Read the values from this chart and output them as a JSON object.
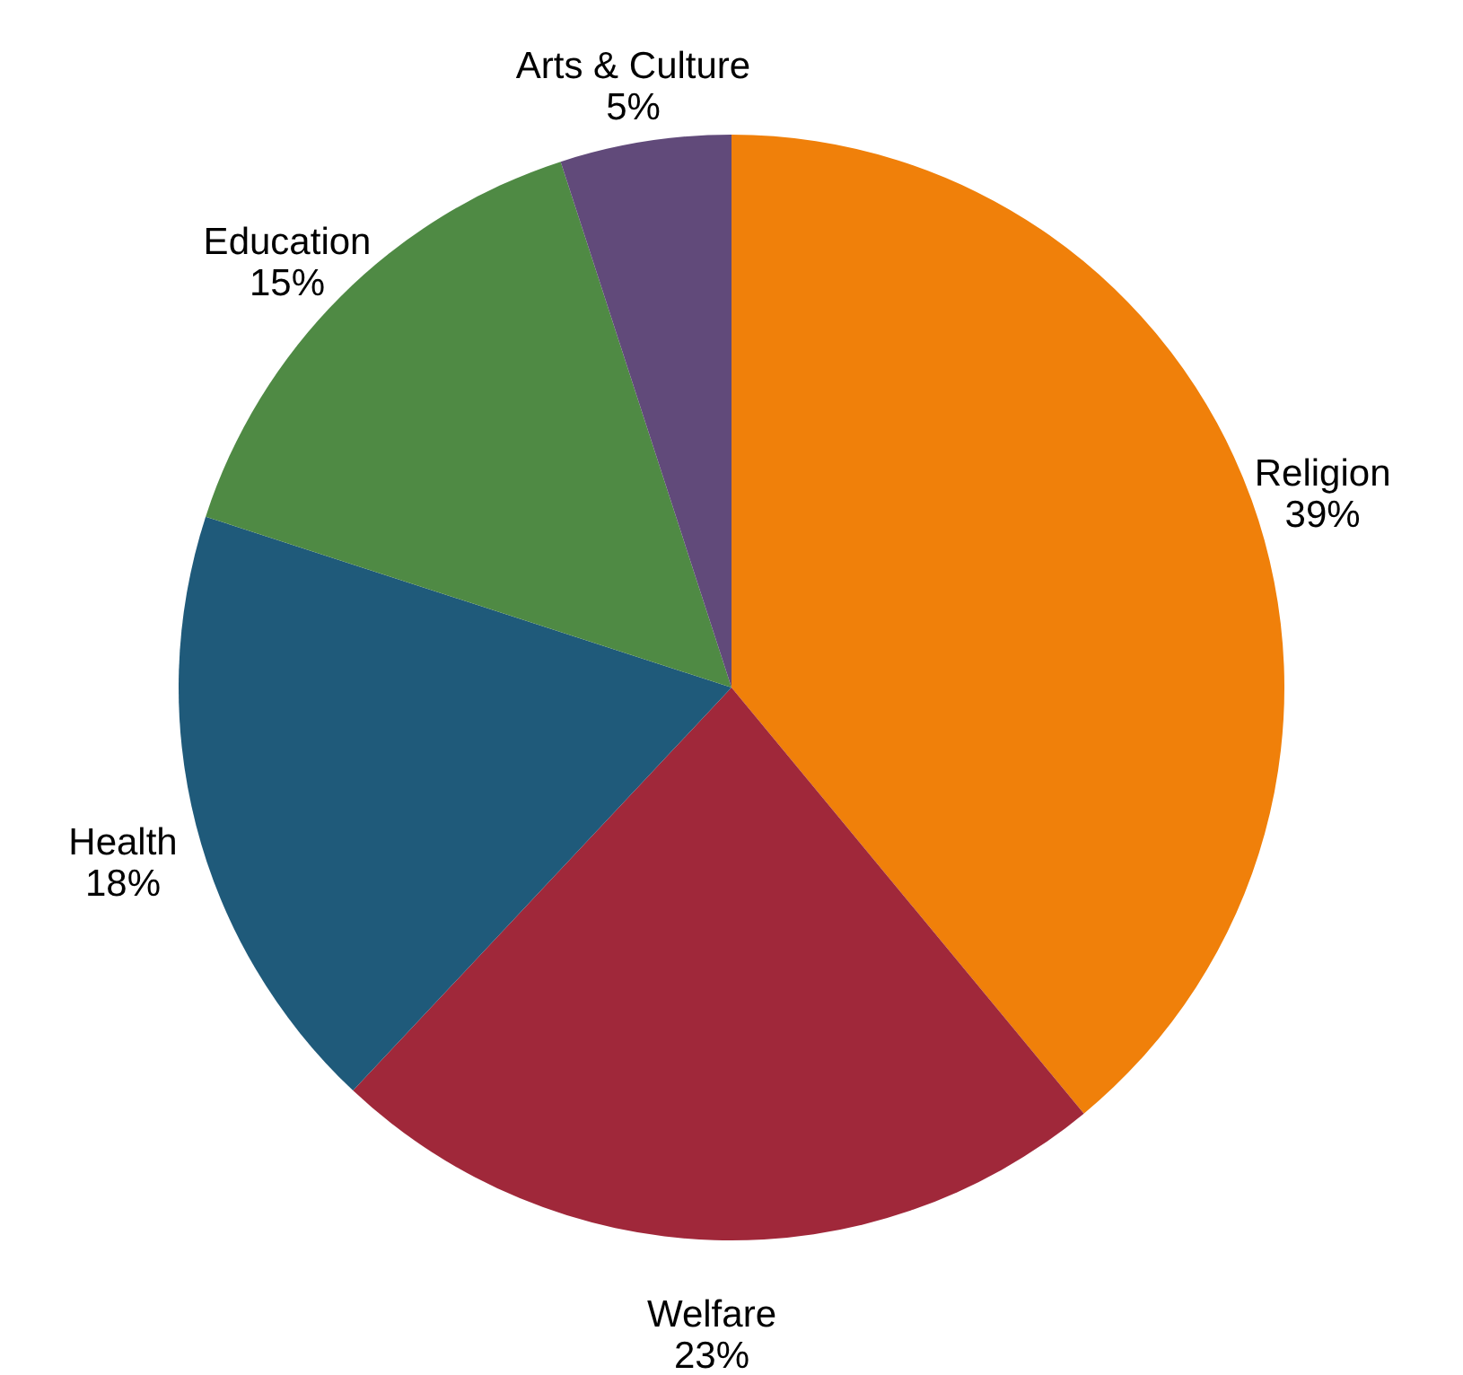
{
  "chart_data": {
    "type": "pie",
    "categories": [
      "Religion",
      "Welfare",
      "Health",
      "Education",
      "Arts & Culture"
    ],
    "values": [
      39,
      23,
      18,
      15,
      5
    ],
    "colors": [
      "#f0800a",
      "#a0283a",
      "#1f5a7a",
      "#4f8a44",
      "#614a7a"
    ],
    "value_labels": [
      "39%",
      "23%",
      "18%",
      "15%",
      "5%"
    ]
  }
}
